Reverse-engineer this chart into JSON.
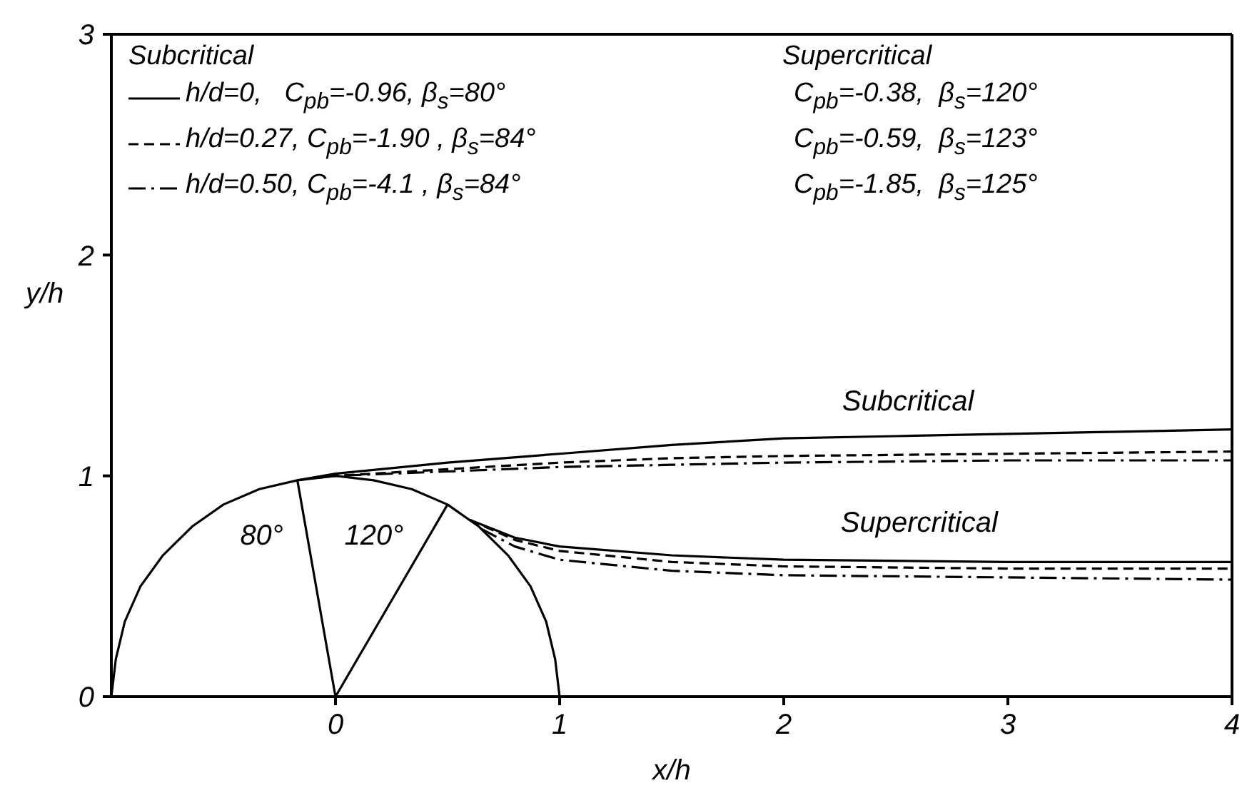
{
  "chart_data": {
    "type": "line",
    "xlabel": "x/h",
    "ylabel": "y/h",
    "xlim": [
      -1,
      4
    ],
    "ylim": [
      0,
      3
    ],
    "xticks": [
      0,
      1,
      2,
      3,
      4
    ],
    "yticks": [
      0,
      1,
      2,
      3
    ],
    "marker": "none",
    "legend": "top left",
    "legend_title": "Subcritical",
    "series": [
      {
        "name": "h/d=0,   C$_{pb}$=-0.96, β$_{s}$=80°",
        "color": "#000000",
        "line_style": "solid",
        "x": [
          -0.17,
          0,
          0.5,
          1,
          1.5,
          2,
          2.5,
          3,
          3.5,
          4
        ],
        "values": [
          0.98,
          1.01,
          1.06,
          1.1,
          1.14,
          1.17,
          1.18,
          1.19,
          1.2,
          1.21
        ]
      },
      {
        "name": "h/d=0.27, C$_{pb}$=-1.90 , β$_{s}$=84°",
        "color": "#000000",
        "line_style": "dashed",
        "x": [
          -0.1,
          0,
          0.5,
          1,
          1.5,
          2,
          3,
          4
        ],
        "values": [
          0.99,
          1.0,
          1.03,
          1.06,
          1.08,
          1.09,
          1.1,
          1.11
        ]
      },
      {
        "name": "h/d=0.50, C$_{pb}$=-4.1 , β$_{s}$=84°",
        "color": "#000000",
        "line_style": "dashdot",
        "x": [
          -0.1,
          0,
          0.5,
          1,
          1.5,
          2,
          3,
          4
        ],
        "values": [
          0.99,
          1.0,
          1.02,
          1.04,
          1.05,
          1.06,
          1.07,
          1.07
        ]
      },
      {
        "color": "#000000",
        "line_style": "solid",
        "x": [
          0.6,
          0.8,
          1,
          1.5,
          2,
          3,
          4
        ],
        "values": [
          0.8,
          0.72,
          0.68,
          0.64,
          0.62,
          0.61,
          0.61
        ]
      },
      {
        "color": "#000000",
        "line_style": "dashed",
        "x": [
          0.6,
          0.8,
          1,
          1.5,
          2,
          3,
          4
        ],
        "values": [
          0.8,
          0.71,
          0.66,
          0.61,
          0.59,
          0.58,
          0.58
        ]
      },
      {
        "color": "#000000",
        "line_style": "dashdot",
        "x": [
          0.65,
          0.8,
          1,
          1.5,
          2,
          3,
          4
        ],
        "values": [
          0.76,
          0.68,
          0.62,
          0.57,
          0.55,
          0.54,
          0.53
        ]
      },
      {
        "color": "#000000",
        "line_style": "solid",
        "x": [
          -1,
          -0.98,
          -0.94,
          -0.87,
          -0.77,
          -0.64,
          -0.5,
          -0.34,
          -0.17,
          0,
          0.17,
          0.34,
          0.5,
          0.64,
          0.77,
          0.87,
          0.94,
          0.98,
          1
        ],
        "values": [
          0,
          0.17,
          0.34,
          0.5,
          0.64,
          0.77,
          0.87,
          0.94,
          0.98,
          1,
          0.98,
          0.94,
          0.87,
          0.77,
          0.64,
          0.5,
          0.34,
          0.17,
          0
        ]
      },
      {
        "color": "#000000",
        "line_style": "solid",
        "x": [
          0,
          -0.17
        ],
        "values": [
          0,
          0.98
        ]
      },
      {
        "color": "#000000",
        "line_style": "solid",
        "x": [
          0,
          0.5
        ],
        "values": [
          0,
          0.87
        ]
      }
    ],
    "annotations": [
      "Supercritical",
      "C$_{pb}$=-0.38,  β$_{s}$=120°",
      "C$_{pb}$=-0.59,  β$_{s}$=123°",
      "C$_{pb}$=-1.85,  β$_{s}$=125°",
      "Subcritical",
      "Supercritical",
      "80°",
      "120°"
    ]
  }
}
